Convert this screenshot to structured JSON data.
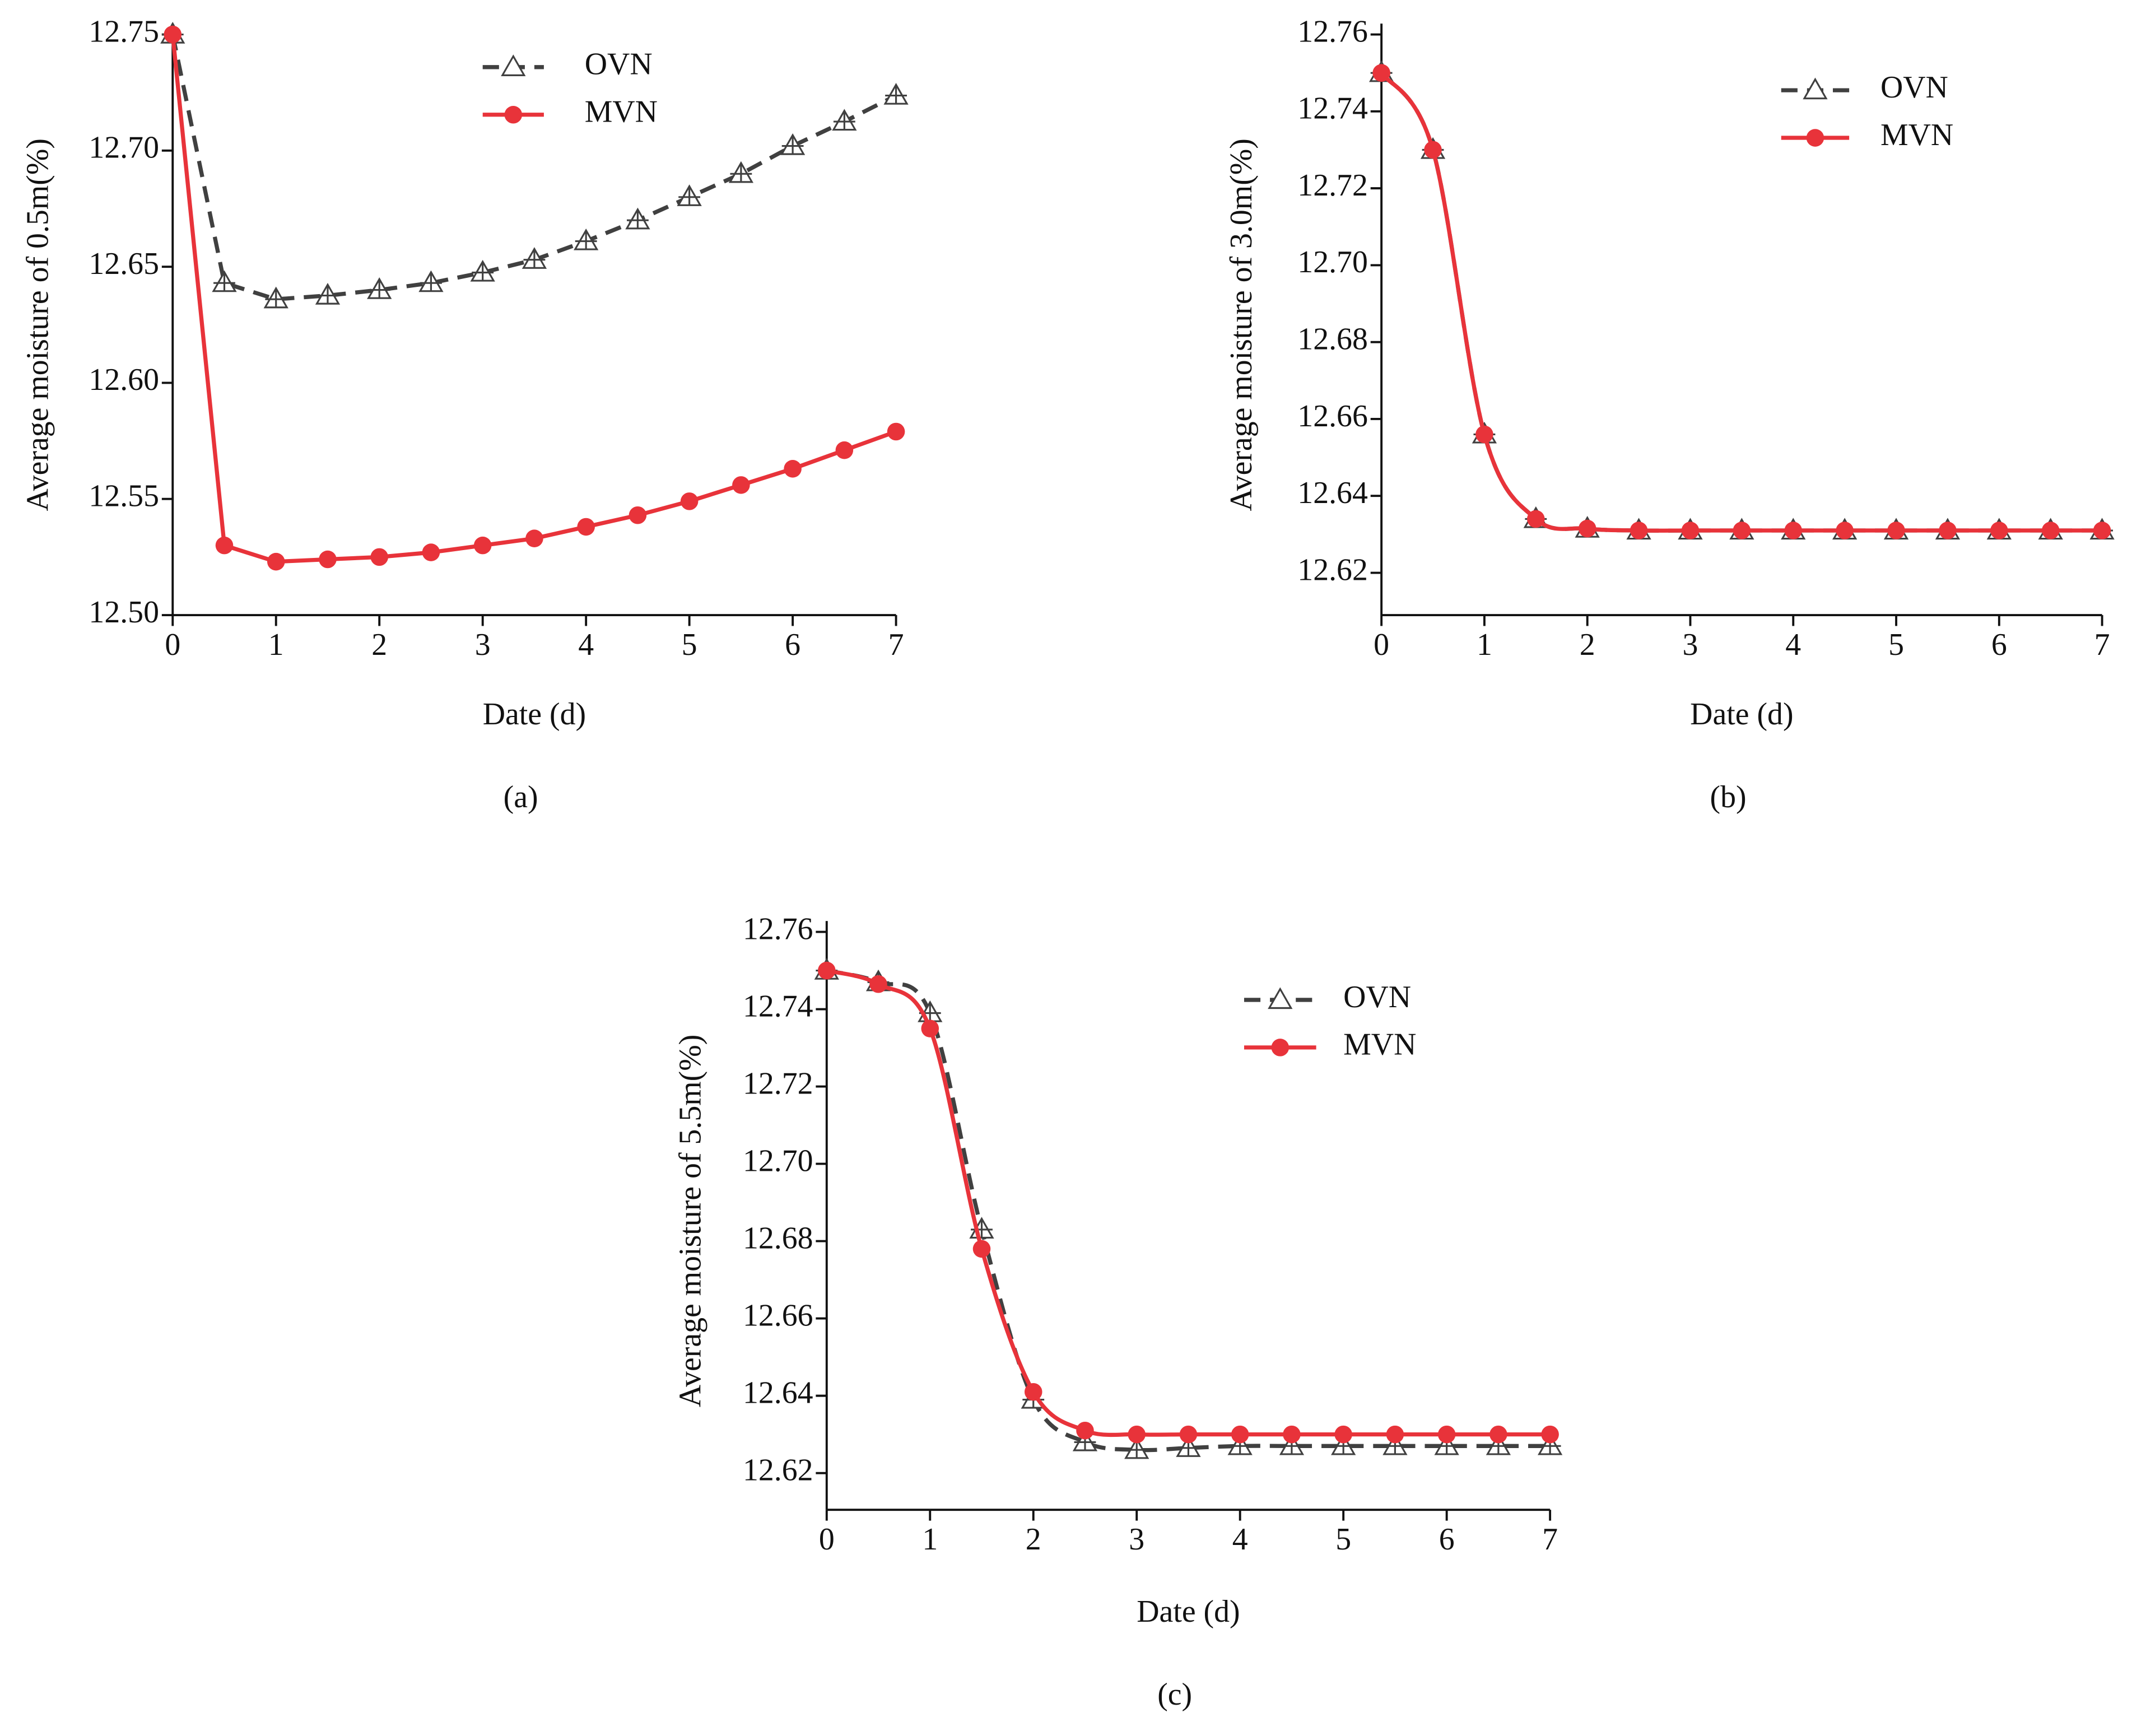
{
  "chart_data": [
    {
      "type": "line",
      "caption": "(a)",
      "x_label": "Date (d)",
      "y_label": "Average moisture of 0.5m(%)",
      "x": [
        0,
        0.5,
        1,
        1.5,
        2,
        2.5,
        3,
        3.5,
        4,
        4.5,
        5,
        5.5,
        6,
        6.5,
        7
      ],
      "xlim": [
        0,
        7
      ],
      "xticks": [
        0,
        1,
        2,
        3,
        4,
        5,
        6,
        7
      ],
      "ylim": [
        12.5,
        12.75
      ],
      "yticks": [
        {
          "value": 12.5,
          "label": "12.50"
        },
        12.55,
        {
          "value": 12.6,
          "label": "12.60"
        },
        12.65,
        {
          "value": 12.7,
          "label": "12.70"
        },
        12.75
      ],
      "smooth": false,
      "series": [
        {
          "name": "OVN",
          "color": "#404040",
          "line": "dashed",
          "marker": "triangle",
          "values": [
            12.75,
            12.643,
            12.636,
            12.6376,
            12.64,
            12.643,
            12.6475,
            12.653,
            12.661,
            12.67,
            12.68,
            12.69,
            12.702,
            12.7125,
            12.7237
          ]
        },
        {
          "name": "MVN",
          "color": "#e8333a",
          "line": "solid",
          "marker": "circle",
          "values": [
            12.75,
            12.53,
            12.523,
            12.524,
            12.525,
            12.527,
            12.53,
            12.533,
            12.538,
            12.543,
            12.549,
            12.556,
            12.563,
            12.571,
            12.579
          ]
        }
      ]
    },
    {
      "type": "line",
      "caption": "(b)",
      "x_label": "Date (d)",
      "y_label": "Average moisture of 3.0m(%)",
      "x": [
        0,
        0.5,
        1,
        1.5,
        2,
        2.5,
        3,
        3.5,
        4,
        4.5,
        5,
        5.5,
        6,
        6.5,
        7
      ],
      "xlim": [
        0,
        7
      ],
      "xticks": [
        0,
        1,
        2,
        3,
        4,
        5,
        6,
        7
      ],
      "ylim": [
        12.609,
        12.76
      ],
      "yticks": [
        12.62,
        12.64,
        12.66,
        12.68,
        {
          "value": 12.7,
          "label": "12.70"
        },
        12.72,
        12.74,
        12.76
      ],
      "smooth": true,
      "series": [
        {
          "name": "OVN",
          "color": "#404040",
          "line": "dashed",
          "marker": "triangle",
          "values": [
            12.75,
            12.73,
            12.656,
            12.634,
            12.6315,
            12.631,
            12.631,
            12.631,
            12.631,
            12.631,
            12.631,
            12.631,
            12.631,
            12.631,
            12.631
          ]
        },
        {
          "name": "MVN",
          "color": "#e8333a",
          "line": "solid",
          "marker": "circle",
          "values": [
            12.75,
            12.73,
            12.656,
            12.634,
            12.6315,
            12.631,
            12.631,
            12.631,
            12.631,
            12.631,
            12.631,
            12.631,
            12.631,
            12.631,
            12.631
          ]
        }
      ]
    },
    {
      "type": "line",
      "caption": "(c)",
      "x_label": "Date (d)",
      "y_label": "Average moisture of 5.5m(%)",
      "x": [
        0,
        0.5,
        1,
        1.5,
        2,
        2.5,
        3,
        3.5,
        4,
        4.5,
        5,
        5.5,
        6,
        6.5,
        7
      ],
      "xlim": [
        0,
        7
      ],
      "xticks": [
        0,
        1,
        2,
        3,
        4,
        5,
        6,
        7
      ],
      "ylim": [
        12.6105,
        12.76
      ],
      "yticks": [
        12.62,
        12.64,
        12.66,
        12.68,
        {
          "value": 12.7,
          "label": "12.70"
        },
        12.72,
        12.74,
        12.76
      ],
      "smooth": true,
      "series": [
        {
          "name": "OVN",
          "color": "#404040",
          "line": "dashed",
          "marker": "triangle",
          "values": [
            12.75,
            12.747,
            12.739,
            12.683,
            12.639,
            12.628,
            12.626,
            12.6265,
            12.627,
            12.627,
            12.627,
            12.627,
            12.627,
            12.627,
            12.627
          ]
        },
        {
          "name": "MVN",
          "color": "#e8333a",
          "line": "solid",
          "marker": "circle",
          "values": [
            12.75,
            12.7465,
            12.735,
            12.678,
            12.641,
            12.631,
            12.63,
            12.63,
            12.63,
            12.63,
            12.63,
            12.63,
            12.63,
            12.63,
            12.63
          ]
        }
      ]
    }
  ]
}
